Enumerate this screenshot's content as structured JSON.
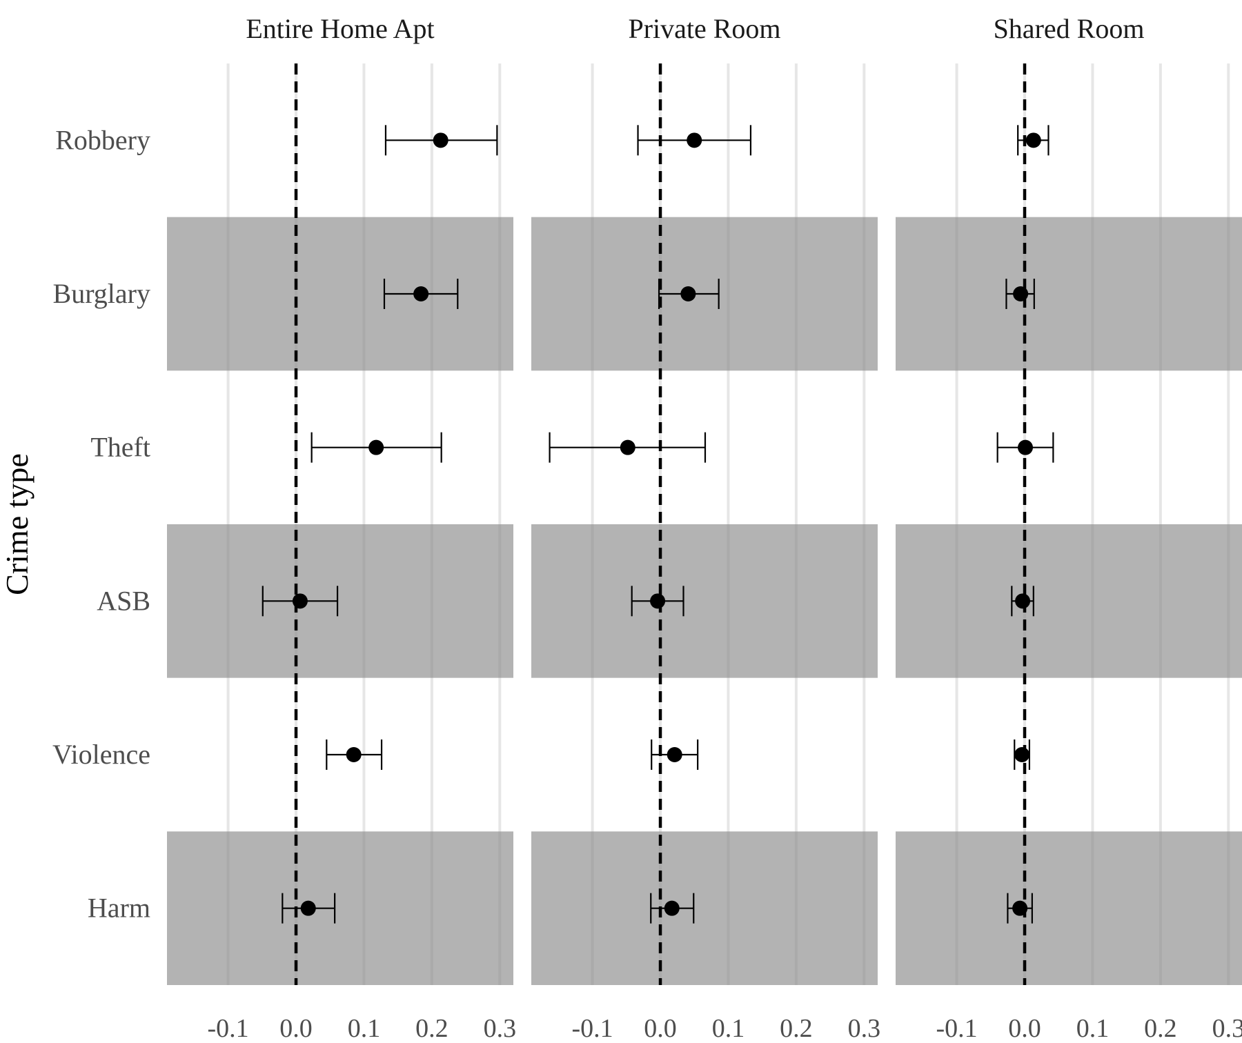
{
  "chart_data": {
    "type": "scatter",
    "subtype": "forest-plot-with-error-bars",
    "ylabel": "Crime type",
    "xlabel": "",
    "categories": [
      "Robbery",
      "Burglary",
      "Theft",
      "ASB",
      "Violence",
      "Harm"
    ],
    "xlim": [
      -0.19,
      0.32
    ],
    "xticks": [
      -0.1,
      0.0,
      0.1,
      0.2,
      0.3
    ],
    "xtick_labels": [
      "-0.1",
      "0.0",
      "0.1",
      "0.2",
      "0.3"
    ],
    "reference_line": {
      "x": 0,
      "style": "dashed",
      "color": "#000000"
    },
    "band_color": "#b3b3b3",
    "shaded_rows": [
      "Burglary",
      "ASB",
      "Harm"
    ],
    "grid": "vertical-major",
    "point_color": "#000000",
    "panels": [
      {
        "title": "Entire Home Apt",
        "points": [
          {
            "category": "Robbery",
            "estimate": 0.213,
            "low": 0.132,
            "high": 0.296
          },
          {
            "category": "Burglary",
            "estimate": 0.184,
            "low": 0.13,
            "high": 0.238
          },
          {
            "category": "Theft",
            "estimate": 0.118,
            "low": 0.023,
            "high": 0.214
          },
          {
            "category": "ASB",
            "estimate": 0.006,
            "low": -0.049,
            "high": 0.061
          },
          {
            "category": "Violence",
            "estimate": 0.085,
            "low": 0.045,
            "high": 0.126
          },
          {
            "category": "Harm",
            "estimate": 0.018,
            "low": -0.02,
            "high": 0.057
          }
        ]
      },
      {
        "title": "Private Room",
        "points": [
          {
            "category": "Robbery",
            "estimate": 0.05,
            "low": -0.033,
            "high": 0.133
          },
          {
            "category": "Burglary",
            "estimate": 0.041,
            "low": -0.002,
            "high": 0.086
          },
          {
            "category": "Theft",
            "estimate": -0.048,
            "low": -0.163,
            "high": 0.066
          },
          {
            "category": "ASB",
            "estimate": -0.004,
            "low": -0.042,
            "high": 0.034
          },
          {
            "category": "Violence",
            "estimate": 0.021,
            "low": -0.013,
            "high": 0.055
          },
          {
            "category": "Harm",
            "estimate": 0.017,
            "low": -0.014,
            "high": 0.049
          }
        ]
      },
      {
        "title": "Shared Room",
        "points": [
          {
            "category": "Robbery",
            "estimate": 0.013,
            "low": -0.01,
            "high": 0.035
          },
          {
            "category": "Burglary",
            "estimate": -0.006,
            "low": -0.027,
            "high": 0.014
          },
          {
            "category": "Theft",
            "estimate": 0.001,
            "low": -0.04,
            "high": 0.042
          },
          {
            "category": "ASB",
            "estimate": -0.003,
            "low": -0.019,
            "high": 0.013
          },
          {
            "category": "Violence",
            "estimate": -0.004,
            "low": -0.015,
            "high": 0.007
          },
          {
            "category": "Harm",
            "estimate": -0.007,
            "low": -0.025,
            "high": 0.011
          }
        ]
      }
    ]
  }
}
